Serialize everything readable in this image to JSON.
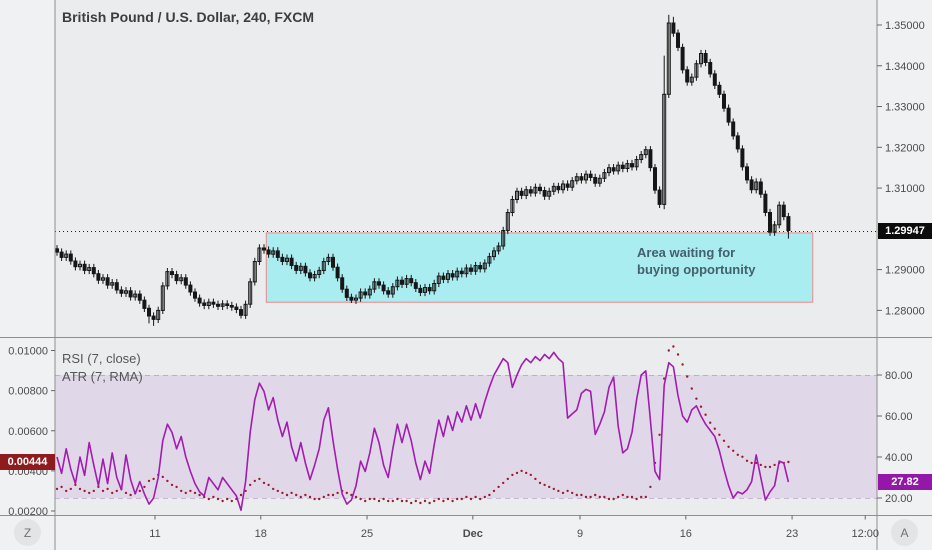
{
  "window": {
    "title": "British Pound / U.S. Dollar, 240, FXCM"
  },
  "indicators": {
    "rsi_label": "RSI (7, close)",
    "atr_label": "ATR (7, RMA)"
  },
  "annotation": {
    "line1": "Area waiting for",
    "line2": "buying opportunity"
  },
  "badges": {
    "last_price": "1.29947",
    "atr_value": "0.00444",
    "rsi_value": "27.82",
    "corner_left": "Z",
    "corner_right": "A"
  },
  "colors": {
    "candle": "#161616",
    "box_fill": "#a9edf0",
    "box_border": "#e98b8b",
    "rsi_line": "#a21cb0",
    "atr_dots": "#9c1b2e",
    "band_fill": "rgba(165,80,200,0.13)",
    "band_edge": "rgba(140,80,160,0.35)",
    "price_badge_bg": "#0c0c0c",
    "atr_badge_bg": "#8e1b1e",
    "rsi_badge_bg": "#9318a8",
    "axis_text": "#4c4c4c",
    "plot_bg": "#eaecee",
    "separator": "#8f8f8f"
  },
  "time_axis": {
    "labels": [
      "11",
      "18",
      "25",
      "Dec",
      "9",
      "16",
      "23",
      "12:00"
    ]
  },
  "chart_data": [
    {
      "type": "candlestick",
      "title": "British Pound / U.S. Dollar, 240, FXCM",
      "y_ticks": [
        1.35,
        1.34,
        1.33,
        1.32,
        1.31,
        1.29,
        1.28
      ],
      "y_range": [
        1.2745,
        1.3555
      ],
      "last_price": 1.29947,
      "x_tick_labels": [
        "11",
        "18",
        "25",
        "Dec",
        "9",
        "16",
        "23",
        "12:00"
      ],
      "x_tick_indices": [
        21.3,
        44.3,
        67.4,
        90.4,
        113.7,
        136.7,
        159.8,
        175.7
      ],
      "box": {
        "start_index": 45.5,
        "end_index": 164.3,
        "top_price": 1.299,
        "bottom_price": 1.282,
        "label": "Area waiting for buying opportunity"
      },
      "default_wick": 0.0009,
      "wick_overrides": {
        "20": {
          "l": 1.2768
        },
        "21": {
          "l": 1.2762
        },
        "40": {
          "l": 1.278
        },
        "64": {
          "l": 1.2818
        },
        "132": {
          "l": 1.3048,
          "h": 1.3425
        },
        "133": {
          "h": 1.3525
        },
        "134": {
          "h": 1.352
        },
        "159": {
          "l": 1.2976
        }
      },
      "closes": [
        1.2943,
        1.293,
        1.2938,
        1.2921,
        1.2907,
        1.2913,
        1.2898,
        1.2905,
        1.289,
        1.2874,
        1.288,
        1.2862,
        1.2868,
        1.285,
        1.2842,
        1.2848,
        1.2833,
        1.284,
        1.2825,
        1.2805,
        1.2786,
        1.2778,
        1.28,
        1.286,
        1.2895,
        1.2888,
        1.2873,
        1.288,
        1.2862,
        1.2845,
        1.283,
        1.2818,
        1.2812,
        1.282,
        1.2815,
        1.281,
        1.2816,
        1.2812,
        1.2808,
        1.2802,
        1.2788,
        1.2815,
        1.287,
        1.292,
        1.2953,
        1.2948,
        1.2938,
        1.2946,
        1.293,
        1.292,
        1.2928,
        1.291,
        1.2898,
        1.2908,
        1.2892,
        1.288,
        1.2888,
        1.2898,
        1.292,
        1.293,
        1.2906,
        1.288,
        1.2852,
        1.2832,
        1.2825,
        1.283,
        1.2845,
        1.2838,
        1.2852,
        1.287,
        1.2862,
        1.2848,
        1.284,
        1.2858,
        1.2874,
        1.2864,
        1.2878,
        1.2868,
        1.2854,
        1.2844,
        1.2856,
        1.2848,
        1.2866,
        1.2884,
        1.2876,
        1.289,
        1.2882,
        1.2896,
        1.289,
        1.2904,
        1.2896,
        1.291,
        1.2902,
        1.2916,
        1.2932,
        1.2946,
        1.2958,
        1.2996,
        1.304,
        1.3072,
        1.3092,
        1.3082,
        1.3096,
        1.3088,
        1.3102,
        1.3094,
        1.308,
        1.3092,
        1.3104,
        1.3096,
        1.311,
        1.3102,
        1.3118,
        1.3128,
        1.312,
        1.3134,
        1.3126,
        1.3112,
        1.3124,
        1.3138,
        1.315,
        1.3142,
        1.3156,
        1.3148,
        1.316,
        1.3152,
        1.317,
        1.3182,
        1.3194,
        1.315,
        1.3095,
        1.306,
        1.333,
        1.3505,
        1.348,
        1.3445,
        1.339,
        1.336,
        1.3372,
        1.3405,
        1.343,
        1.3408,
        1.338,
        1.3352,
        1.333,
        1.3296,
        1.3262,
        1.3228,
        1.3196,
        1.3152,
        1.312,
        1.3096,
        1.3115,
        1.3085,
        1.304,
        1.2992,
        1.301,
        1.3058,
        1.303,
        1.2996
      ]
    },
    {
      "type": "line",
      "right_axis": {
        "ticks": [
          80,
          60,
          40,
          20
        ],
        "band": [
          20,
          80
        ]
      },
      "left_axis": {
        "ticks": [
          0.01,
          0.008,
          0.006,
          0.004,
          0.002
        ]
      },
      "series": [
        {
          "name": "RSI (7, close)",
          "style": "line",
          "axis": "right",
          "last_value": 27.82,
          "values": [
            40,
            32,
            44,
            34,
            27,
            40,
            31,
            47,
            36,
            26,
            39,
            27,
            42,
            30,
            24,
            41,
            29,
            22,
            28,
            22,
            17,
            20,
            30,
            48,
            56,
            52,
            44,
            50,
            40,
            33,
            27,
            23,
            21,
            30,
            27,
            24,
            30,
            27,
            24,
            21,
            14,
            28,
            52,
            68,
            76,
            72,
            63,
            69,
            58,
            50,
            57,
            45,
            38,
            47,
            37,
            29,
            36,
            44,
            58,
            64,
            48,
            34,
            22,
            17,
            19,
            26,
            38,
            33,
            42,
            54,
            47,
            36,
            30,
            44,
            56,
            47,
            56,
            48,
            37,
            29,
            38,
            32,
            46,
            58,
            50,
            60,
            53,
            62,
            57,
            65,
            58,
            66,
            59,
            67,
            74,
            80,
            84,
            88,
            86,
            74,
            80,
            85,
            88,
            86,
            89,
            87,
            90,
            88,
            91,
            88,
            86,
            59,
            61,
            63,
            71,
            73,
            72,
            51,
            56,
            62,
            74,
            79,
            55,
            42,
            44,
            52,
            68,
            80,
            82,
            58,
            33,
            29,
            75,
            86,
            84,
            70,
            60,
            57,
            63,
            65,
            60,
            56,
            53,
            50,
            43,
            34,
            26,
            20,
            23,
            22,
            24,
            28,
            41,
            30,
            19,
            23,
            26,
            38,
            37,
            27.82
          ]
        },
        {
          "name": "ATR (7, RMA)",
          "style": "dots",
          "axis": "left",
          "last_value": 0.00444,
          "values": [
            0.0031,
            0.0032,
            0.003,
            0.0031,
            0.0033,
            0.0031,
            0.003,
            0.0029,
            0.003,
            0.0032,
            0.003,
            0.0031,
            0.0029,
            0.003,
            0.0031,
            0.0029,
            0.0028,
            0.0029,
            0.003,
            0.0032,
            0.0035,
            0.0036,
            0.0038,
            0.0037,
            0.0035,
            0.0033,
            0.0032,
            0.003,
            0.0029,
            0.003,
            0.0029,
            0.0028,
            0.0027,
            0.0026,
            0.0027,
            0.0026,
            0.0025,
            0.0026,
            0.0025,
            0.0026,
            0.0028,
            0.003,
            0.0033,
            0.0035,
            0.0036,
            0.0034,
            0.0033,
            0.0031,
            0.003,
            0.0029,
            0.0028,
            0.0029,
            0.0028,
            0.0027,
            0.0028,
            0.0027,
            0.0026,
            0.0026,
            0.0027,
            0.0028,
            0.0028,
            0.0029,
            0.003,
            0.0029,
            0.0028,
            0.0027,
            0.0026,
            0.0025,
            0.0026,
            0.0026,
            0.0025,
            0.0026,
            0.0025,
            0.0025,
            0.0026,
            0.0025,
            0.0025,
            0.0024,
            0.0025,
            0.0024,
            0.0025,
            0.0024,
            0.0025,
            0.0026,
            0.0025,
            0.0026,
            0.0025,
            0.0026,
            0.0026,
            0.0027,
            0.0026,
            0.0027,
            0.0026,
            0.0027,
            0.0028,
            0.003,
            0.0032,
            0.0034,
            0.0036,
            0.0038,
            0.0039,
            0.004,
            0.0039,
            0.0038,
            0.0036,
            0.0034,
            0.0033,
            0.0032,
            0.0031,
            0.003,
            0.0029,
            0.003,
            0.0029,
            0.0028,
            0.0028,
            0.0027,
            0.0027,
            0.0028,
            0.0027,
            0.0027,
            0.0026,
            0.0026,
            0.0027,
            0.0028,
            0.0027,
            0.0027,
            0.0026,
            0.0027,
            0.0027,
            0.0032,
            0.0044,
            0.0058,
            0.0086,
            0.01,
            0.0102,
            0.0098,
            0.0093,
            0.0087,
            0.0081,
            0.0076,
            0.0072,
            0.0068,
            0.0064,
            0.0061,
            0.0058,
            0.0055,
            0.0052,
            0.005,
            0.0048,
            0.0047,
            0.0045,
            0.0044,
            0.0044,
            0.0043,
            0.0042,
            0.0042,
            0.0043,
            0.0044,
            0.0044,
            0.00444
          ]
        }
      ]
    }
  ]
}
